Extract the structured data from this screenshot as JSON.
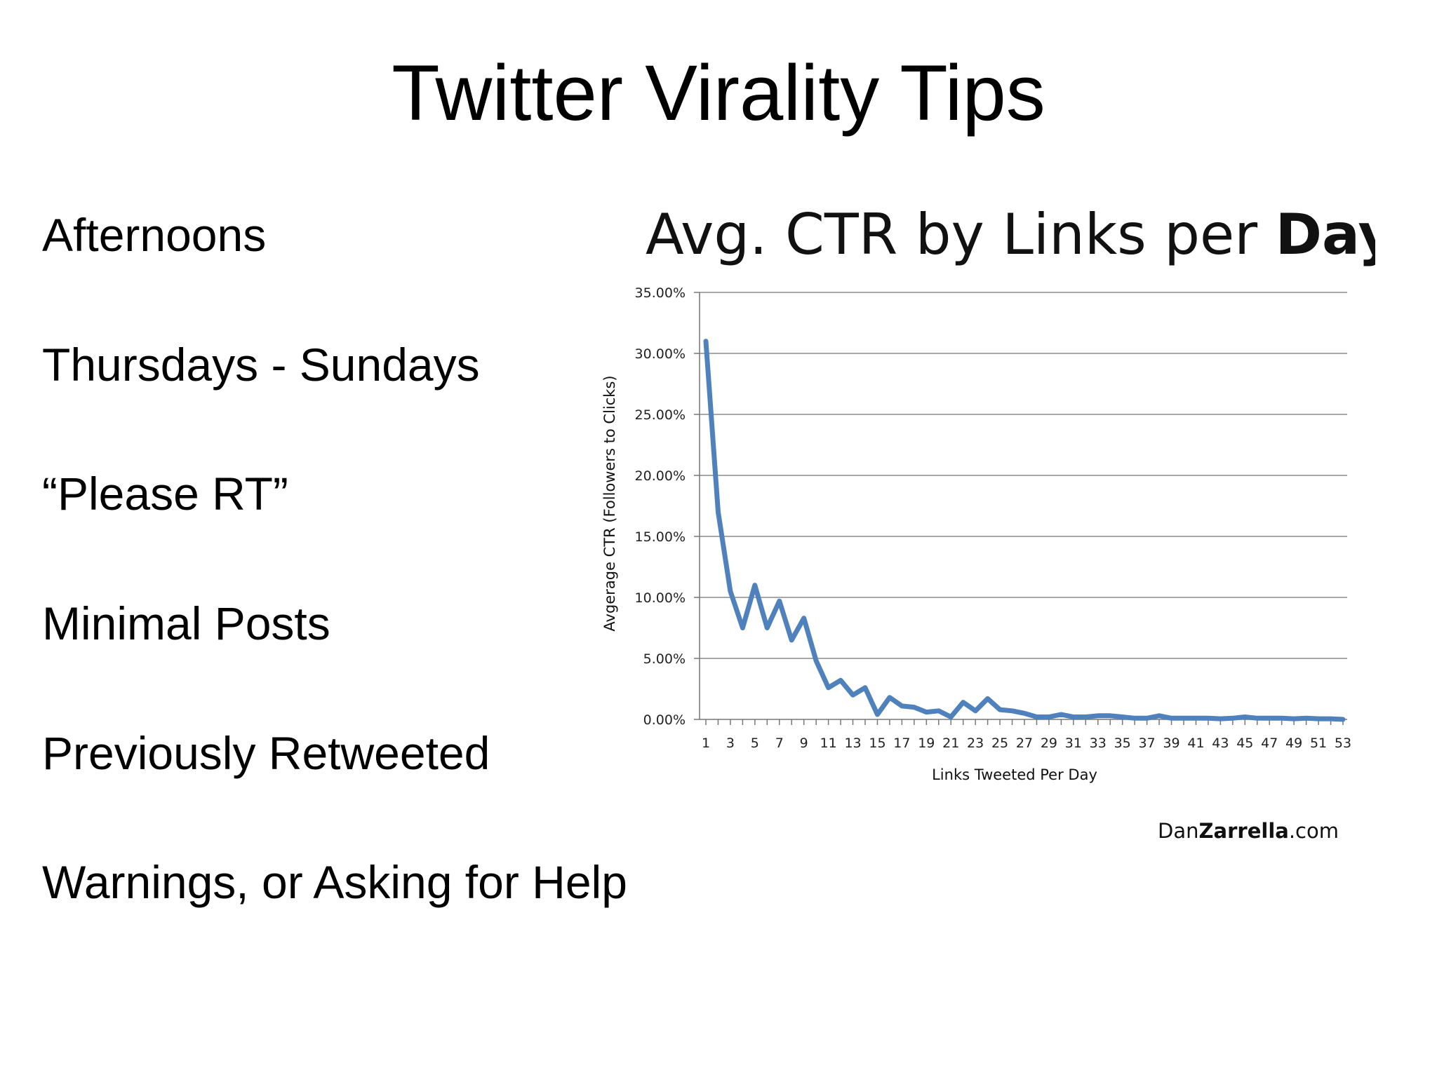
{
  "slide": {
    "title": "Twitter Virality Tips",
    "bullets": [
      "Afternoons",
      "Thursdays - Sundays",
      "“Please RT”",
      "Minimal Posts",
      "Previously Retweeted",
      "Warnings, or Asking for Help"
    ]
  },
  "chart_data": {
    "type": "line",
    "title_regular": "Avg. CTR by Links per ",
    "title_bold": "Day",
    "xlabel": "Links Tweeted Per Day",
    "ylabel": "Avgerage CTR (Followers to Clicks)",
    "ylim": [
      0,
      35
    ],
    "yticks": [
      "0.00%",
      "5.00%",
      "10.00%",
      "15.00%",
      "20.00%",
      "25.00%",
      "30.00%",
      "35.00%"
    ],
    "grid": true,
    "xtick_labels": [
      1,
      3,
      5,
      7,
      9,
      11,
      13,
      15,
      17,
      19,
      21,
      23,
      25,
      27,
      29,
      31,
      33,
      35,
      37,
      39,
      41,
      43,
      45,
      47,
      49,
      51,
      53
    ],
    "series": [
      {
        "color": "#4f81bd",
        "x": [
          1,
          2,
          3,
          4,
          5,
          6,
          7,
          8,
          9,
          10,
          11,
          12,
          13,
          14,
          15,
          16,
          17,
          18,
          19,
          20,
          21,
          22,
          23,
          24,
          25,
          26,
          27,
          28,
          29,
          30,
          31,
          32,
          33,
          34,
          35,
          36,
          37,
          38,
          39,
          40,
          41,
          42,
          43,
          44,
          45,
          46,
          47,
          48,
          49,
          50,
          51,
          52,
          53
        ],
        "values": [
          31.0,
          17.0,
          10.5,
          7.5,
          11.0,
          7.5,
          9.7,
          6.5,
          8.3,
          4.8,
          2.6,
          3.2,
          2.0,
          2.6,
          0.4,
          1.8,
          1.1,
          1.0,
          0.6,
          0.7,
          0.2,
          1.4,
          0.7,
          1.7,
          0.8,
          0.7,
          0.5,
          0.2,
          0.2,
          0.4,
          0.2,
          0.2,
          0.3,
          0.3,
          0.2,
          0.1,
          0.1,
          0.3,
          0.1,
          0.1,
          0.1,
          0.1,
          0.05,
          0.1,
          0.2,
          0.1,
          0.1,
          0.1,
          0.05,
          0.1,
          0.05,
          0.05,
          0.0
        ]
      }
    ],
    "brand_regular": "Dan",
    "brand_bold": "Zarrella",
    "brand_suffix": ".com"
  }
}
